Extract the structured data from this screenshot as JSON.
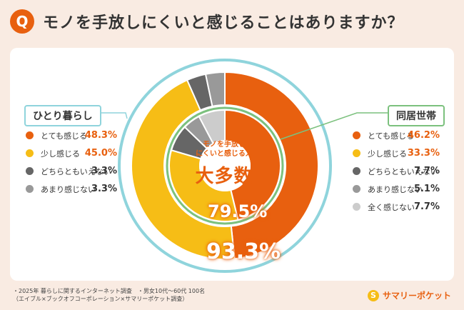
{
  "header": {
    "q_letter": "Q",
    "title": "モノを手放しにくいと感じることはありますか？"
  },
  "colors": {
    "orange": "#e8600f",
    "yellow": "#f6bd16",
    "dark_gray": "#666666",
    "gray": "#999999",
    "light_gray": "#cccccc",
    "teal": "#8fd4dc",
    "green": "#7cc17e"
  },
  "chart_data": [
    {
      "type": "pie",
      "title": "ひとり暮らし",
      "ring": "outer",
      "categories": [
        "とても感じる",
        "少し感じる",
        "どちらともいえない",
        "あまり感じない"
      ],
      "values": [
        48.3,
        45.0,
        3.3,
        3.3
      ],
      "colors": [
        "#e8600f",
        "#f6bd16",
        "#666666",
        "#999999"
      ],
      "total_label": "93.3%"
    },
    {
      "type": "pie",
      "title": "同居世帯",
      "ring": "inner",
      "categories": [
        "とても感じる",
        "少し感じる",
        "どちらともいえない",
        "あまり感じない",
        "全く感じない"
      ],
      "values": [
        46.2,
        33.3,
        7.7,
        5.1,
        7.7
      ],
      "colors": [
        "#e8600f",
        "#f6bd16",
        "#666666",
        "#999999",
        "#cccccc"
      ],
      "total_label": "79.5%"
    }
  ],
  "left_legend": {
    "title": "ひとり暮らし",
    "rows": [
      {
        "label": "とても感じる",
        "value": "48.3%",
        "color": "#e8600f",
        "value_color": "#e8600f"
      },
      {
        "label": "少し感じる",
        "value": "45.0%",
        "color": "#f6bd16",
        "value_color": "#e8600f"
      },
      {
        "label": "どちらともいえない",
        "value": "3.3%",
        "color": "#666666",
        "value_color": "#333333"
      },
      {
        "label": "あまり感じない",
        "value": "3.3%",
        "color": "#999999",
        "value_color": "#333333"
      }
    ]
  },
  "right_legend": {
    "title": "同居世帯",
    "rows": [
      {
        "label": "とても感じる",
        "value": "46.2%",
        "color": "#e8600f",
        "value_color": "#e8600f"
      },
      {
        "label": "少し感じる",
        "value": "33.3%",
        "color": "#f6bd16",
        "value_color": "#e8600f"
      },
      {
        "label": "どちらともいえない",
        "value": "7.7%",
        "color": "#666666",
        "value_color": "#333333"
      },
      {
        "label": "あまり感じない",
        "value": "5.1%",
        "color": "#999999",
        "value_color": "#333333"
      },
      {
        "label": "全く感じない",
        "value": "7.7%",
        "color": "#cccccc",
        "value_color": "#333333"
      }
    ]
  },
  "center": {
    "line1": "モノを手放し",
    "line2": "にくいと感じる人",
    "big": "大多数"
  },
  "totals": {
    "inner": "79.5%",
    "outer": "93.3%"
  },
  "footnote": {
    "line1": "・2025年 暮らしに関するインターネット調査　・男女10代〜60代 100名",
    "line2": "（エイブル×ブックオフコーポレーション×サマリーポケット調査）"
  },
  "brand": {
    "name": "サマリーポケット",
    "mark": "S"
  }
}
